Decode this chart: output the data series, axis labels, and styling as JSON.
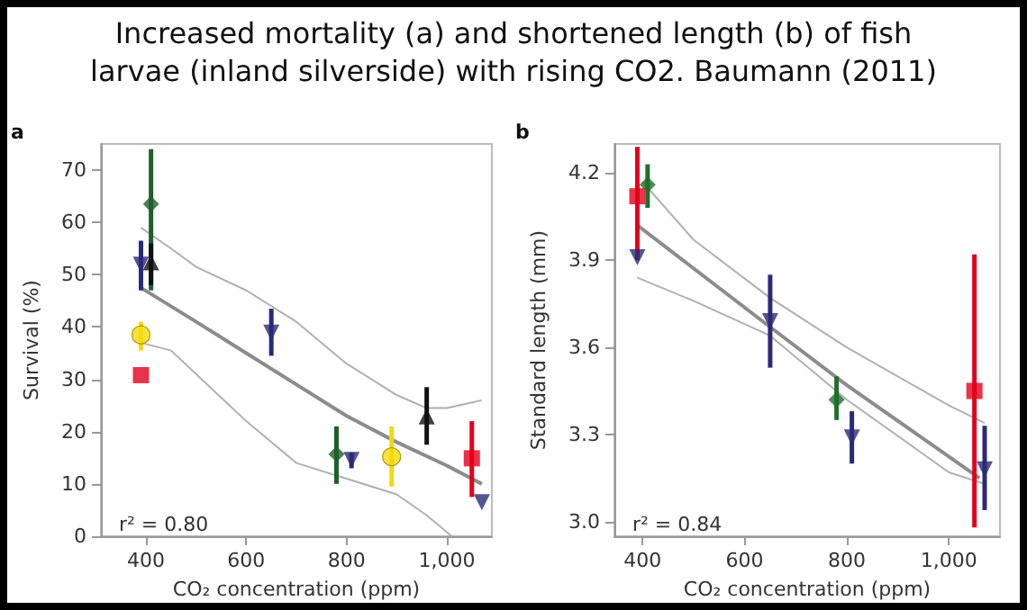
{
  "chart_data": [
    {
      "type": "scatter",
      "title": "Increased mortality (a) and shortened length (b) of fish larvae (inland silverside) with rising CO2. Baumann (2011)",
      "xlabel": "CO₂ concentration (ppm)",
      "ylabel": "Survival (%)",
      "annotations": [
        "a",
        "r² = 0.80"
      ],
      "xlim": [
        310,
        1090
      ],
      "xticks": [
        400,
        600,
        800,
        {
          "value": 1000,
          "label": "1,000"
        }
      ],
      "ylim": [
        0,
        75
      ],
      "yticks": [
        0,
        10,
        20,
        30,
        40,
        50,
        60,
        70
      ],
      "grid": false,
      "series": [
        {
          "type": "scatter",
          "color": "#e3001b",
          "marker": "square",
          "x": [
            390,
            1050
          ],
          "values": [
            30.8,
            14.9
          ],
          "errors": [
            null,
            [
              7.5,
              22
            ]
          ]
        },
        {
          "type": "scatter",
          "color": "#f5d90a",
          "marker": "circle",
          "x": [
            390,
            890
          ],
          "values": [
            38.5,
            15.2
          ],
          "errors": [
            [
              35.5,
              41
            ],
            [
              9.5,
              21
            ]
          ]
        },
        {
          "type": "scatter",
          "color": "#1f5f2a",
          "marker": "diamond",
          "x": [
            410,
            780
          ],
          "values": [
            63.5,
            15.7
          ],
          "errors": [
            [
              47,
              74
            ],
            [
              10,
              21
            ]
          ]
        },
        {
          "type": "scatter",
          "color": "#111111",
          "marker": "triangle",
          "x": [
            410,
            960
          ],
          "values": [
            52.4,
            22.9
          ],
          "errors": [
            [
              48,
              56
            ],
            [
              17.5,
              28.5
            ]
          ]
        },
        {
          "type": "scatter",
          "color": "#2a2a78",
          "marker": "triangle_down",
          "x": [
            390,
            650,
            810,
            1070
          ],
          "values": [
            51.9,
            38.9,
            14.6,
            6.5
          ],
          "errors": [
            [
              47,
              56.5
            ],
            [
              34.5,
              43.5
            ],
            [
              13,
              16
            ],
            null
          ]
        },
        {
          "type": "line",
          "color": "#8c8c8c",
          "marker": "none",
          "x": [
            390,
            500,
            600,
            700,
            800,
            900,
            1000,
            1070
          ],
          "values": [
            47.5,
            41,
            35,
            29,
            23,
            18,
            13.5,
            10
          ]
        },
        {
          "type": "line",
          "color": "#b0b0b0",
          "marker": "none",
          "x": [
            390,
            450,
            500,
            600,
            700,
            800,
            900,
            960,
            1000,
            1070
          ],
          "values": [
            59,
            55,
            51.5,
            47,
            41,
            33,
            27,
            24.5,
            24.5,
            26
          ]
        },
        {
          "type": "line",
          "color": "#b0b0b0",
          "marker": "none",
          "x": [
            390,
            450,
            500,
            600,
            700,
            800,
            900,
            960,
            1010
          ],
          "values": [
            37,
            35.5,
            31,
            22,
            14,
            11,
            8,
            4,
            0
          ]
        }
      ]
    },
    {
      "type": "scatter",
      "xlabel": "CO₂ concentration (ppm)",
      "ylabel": "Standard length (mm)",
      "annotations": [
        "b",
        "r² = 0.84"
      ],
      "xlim": [
        345,
        1100
      ],
      "xticks": [
        400,
        600,
        800,
        {
          "value": 1000,
          "label": "1,000"
        }
      ],
      "ylim": [
        2.95,
        4.3
      ],
      "yticks": [
        {
          "value": 3,
          "label": "3.0"
        },
        3.3,
        3.6,
        3.9,
        4.2
      ],
      "grid": false,
      "series": [
        {
          "type": "scatter",
          "color": "#e3001b",
          "marker": "square",
          "x": [
            390,
            1050
          ],
          "values": [
            4.12,
            3.45
          ],
          "errors": [
            [
              3.9,
              4.29
            ],
            [
              2.98,
              3.92
            ]
          ]
        },
        {
          "type": "scatter",
          "color": "#1f6f2a",
          "marker": "diamond",
          "x": [
            410,
            780
          ],
          "values": [
            4.16,
            3.42
          ],
          "errors": [
            [
              4.08,
              4.23
            ],
            [
              3.35,
              3.5
            ]
          ]
        },
        {
          "type": "scatter",
          "color": "#2a2a78",
          "marker": "triangle_down",
          "x": [
            390,
            650,
            810,
            1070
          ],
          "values": [
            3.91,
            3.69,
            3.29,
            3.18
          ],
          "errors": [
            null,
            [
              3.53,
              3.85
            ],
            [
              3.2,
              3.38
            ],
            [
              3.04,
              3.33
            ]
          ]
        },
        {
          "type": "line",
          "color": "#8c8c8c",
          "marker": "none",
          "x": [
            390,
            650,
            800,
            1060
          ],
          "values": [
            4.02,
            3.67,
            3.47,
            3.15
          ]
        },
        {
          "type": "line",
          "color": "#b0b0b0",
          "marker": "none",
          "x": [
            400,
            500,
            650,
            800,
            1000,
            1070
          ],
          "values": [
            4.17,
            3.97,
            3.77,
            3.6,
            3.4,
            3.34
          ]
        },
        {
          "type": "line",
          "color": "#b0b0b0",
          "marker": "none",
          "x": [
            390,
            500,
            650,
            800,
            1000,
            1070
          ],
          "values": [
            3.84,
            3.76,
            3.64,
            3.42,
            3.17,
            3.13
          ]
        }
      ]
    }
  ]
}
